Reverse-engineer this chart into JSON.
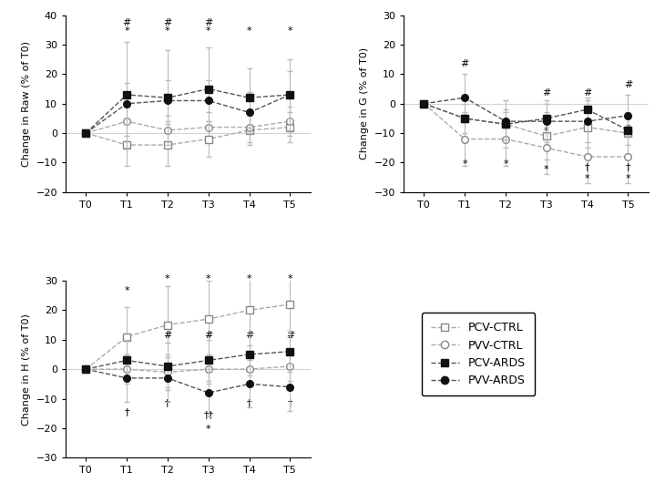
{
  "x": [
    0,
    1,
    2,
    3,
    4,
    5
  ],
  "x_labels": [
    "T0",
    "T1",
    "T2",
    "T3",
    "T4",
    "T5"
  ],
  "Raw": {
    "ylabel": "Change in Raw (% of T0)",
    "ylim": [
      -20,
      40
    ],
    "yticks": [
      -20,
      -10,
      0,
      10,
      20,
      30,
      40
    ],
    "PCV_CTRL": {
      "y": [
        0,
        -4,
        -4,
        -2,
        1,
        2
      ],
      "yerr": [
        0.5,
        7,
        7,
        6,
        5,
        5
      ]
    },
    "PVV_CTRL": {
      "y": [
        0,
        4,
        1,
        2,
        2,
        4
      ],
      "yerr": [
        0.5,
        5,
        5,
        5,
        5,
        5
      ]
    },
    "PCV_ARDS": {
      "y": [
        0,
        13,
        12,
        15,
        12,
        13
      ],
      "yerr": [
        0.5,
        18,
        16,
        14,
        10,
        12
      ]
    },
    "PVV_ARDS": {
      "y": [
        0,
        10,
        11,
        11,
        7,
        13
      ],
      "yerr": [
        0.5,
        7,
        7,
        7,
        7,
        8
      ]
    }
  },
  "G": {
    "ylabel": "Change in G (% of T0)",
    "ylim": [
      -30,
      30
    ],
    "yticks": [
      -30,
      -20,
      -10,
      0,
      10,
      20,
      30
    ],
    "PCV_CTRL": {
      "y": [
        0,
        -5,
        -7,
        -11,
        -8,
        -10
      ],
      "yerr": [
        0.5,
        8,
        8,
        8,
        7,
        7
      ]
    },
    "PVV_CTRL": {
      "y": [
        0,
        -12,
        -12,
        -15,
        -18,
        -18
      ],
      "yerr": [
        0.5,
        9,
        9,
        9,
        9,
        9
      ]
    },
    "PCV_ARDS": {
      "y": [
        0,
        -5,
        -7,
        -5,
        -2,
        -9
      ],
      "yerr": [
        0.5,
        5,
        5,
        5,
        4,
        5
      ]
    },
    "PVV_ARDS": {
      "y": [
        0,
        2,
        -6,
        -6,
        -6,
        -4
      ],
      "yerr": [
        0.5,
        8,
        7,
        7,
        7,
        7
      ]
    }
  },
  "H": {
    "ylabel": "Change in H (% of T0)",
    "ylim": [
      -30,
      30
    ],
    "yticks": [
      -30,
      -20,
      -10,
      0,
      10,
      20,
      30
    ],
    "PCV_CTRL": {
      "y": [
        0,
        11,
        15,
        17,
        20,
        22
      ],
      "yerr": [
        0.5,
        10,
        13,
        13,
        12,
        11
      ]
    },
    "PVV_CTRL": {
      "y": [
        0,
        0,
        -1,
        0,
        0,
        1
      ],
      "yerr": [
        0.5,
        5,
        5,
        5,
        5,
        5
      ]
    },
    "PCV_ARDS": {
      "y": [
        0,
        3,
        1,
        3,
        5,
        6
      ],
      "yerr": [
        0.5,
        7,
        8,
        7,
        7,
        7
      ]
    },
    "PVV_ARDS": {
      "y": [
        0,
        -3,
        -3,
        -8,
        -5,
        -6
      ],
      "yerr": [
        0.5,
        8,
        8,
        8,
        8,
        8
      ]
    }
  }
}
